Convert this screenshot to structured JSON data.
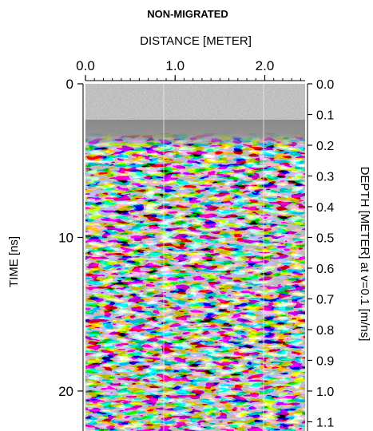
{
  "chart_data": {
    "type": "heatmap",
    "title": "NON-MIGRATED",
    "xlabel": "DISTANCE [METER]",
    "ylabel": "TIME [ns]",
    "y2label": "DEPTH [METER] at v=0.1 [m/ns]",
    "xlim": [
      0.0,
      2.45
    ],
    "ylim": [
      0,
      22.6
    ],
    "y2lim": [
      0.0,
      1.13
    ],
    "x_ticks": [
      "0.0",
      "1.0",
      "2.0"
    ],
    "x_tick_values": [
      0.0,
      1.0,
      2.0
    ],
    "y_ticks": [
      "0",
      "10",
      "20"
    ],
    "y_tick_values": [
      0,
      10,
      20
    ],
    "y2_ticks": [
      "0.0",
      "0.1",
      "0.2",
      "0.3",
      "0.4",
      "0.5",
      "0.6",
      "0.7",
      "0.8",
      "0.9",
      "1.0",
      "1.1"
    ],
    "y2_tick_values": [
      0.0,
      0.1,
      0.2,
      0.3,
      0.4,
      0.5,
      0.6,
      0.7,
      0.8,
      0.9,
      1.0,
      1.1
    ],
    "colormap": "grayscale (black / gray / white)",
    "grid": false,
    "legend": "none"
  }
}
